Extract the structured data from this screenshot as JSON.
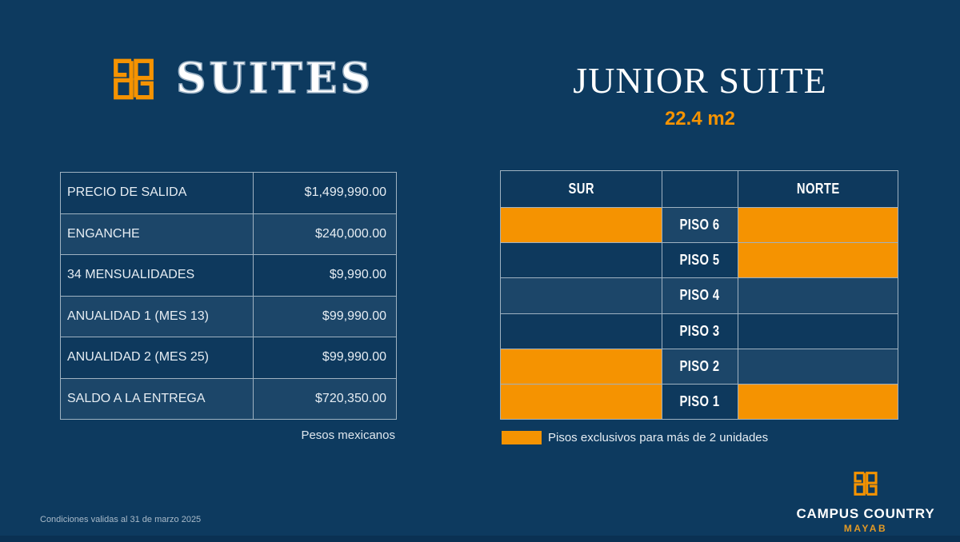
{
  "colors": {
    "background": "#0D3A5F",
    "accent_orange": "#F59301",
    "row_dark": "#0E395D",
    "row_light": "#1C4669",
    "table_border": "#9FB2C1",
    "text_light": "#E6EDF3",
    "mayab_gold": "#E39A25"
  },
  "brand": {
    "word": "SUITES",
    "logo_icon": "campus-country-monogram"
  },
  "title": {
    "main": "JUNIOR SUITE",
    "subtitle": "22.4 m2"
  },
  "pricing_table": {
    "rows": [
      {
        "label": "PRECIO DE SALIDA",
        "value": "$1,499,990.00"
      },
      {
        "label": "ENGANCHE",
        "value": "$240,000.00"
      },
      {
        "label": "34 MENSUALIDADES",
        "value": "$9,990.00"
      },
      {
        "label": "ANUALIDAD 1 (MES 13)",
        "value": "$99,990.00"
      },
      {
        "label": "ANUALIDAD 2 (MES 25)",
        "value": "$99,990.00"
      },
      {
        "label": "SALDO A LA ENTREGA",
        "value": "$720,350.00"
      }
    ],
    "footnote": "Pesos mexicanos"
  },
  "floors_table": {
    "header_left": "SUR",
    "header_right": "NORTE",
    "rows": [
      {
        "label": "PISO 6",
        "sur_exclusive": true,
        "norte_exclusive": true
      },
      {
        "label": "PISO 5",
        "sur_exclusive": false,
        "norte_exclusive": true
      },
      {
        "label": "PISO 4",
        "sur_exclusive": false,
        "norte_exclusive": false
      },
      {
        "label": "PISO 3",
        "sur_exclusive": false,
        "norte_exclusive": false
      },
      {
        "label": "PISO 2",
        "sur_exclusive": true,
        "norte_exclusive": false
      },
      {
        "label": "PISO 1",
        "sur_exclusive": true,
        "norte_exclusive": true
      }
    ]
  },
  "legend": {
    "label": "Pisos exclusivos para más de 2 unidades"
  },
  "footer": {
    "logo_title": "CAMPUS COUNTRY",
    "logo_subtitle": "MAYAB",
    "disclaimer": "Condiciones validas al 31 de marzo 2025"
  }
}
